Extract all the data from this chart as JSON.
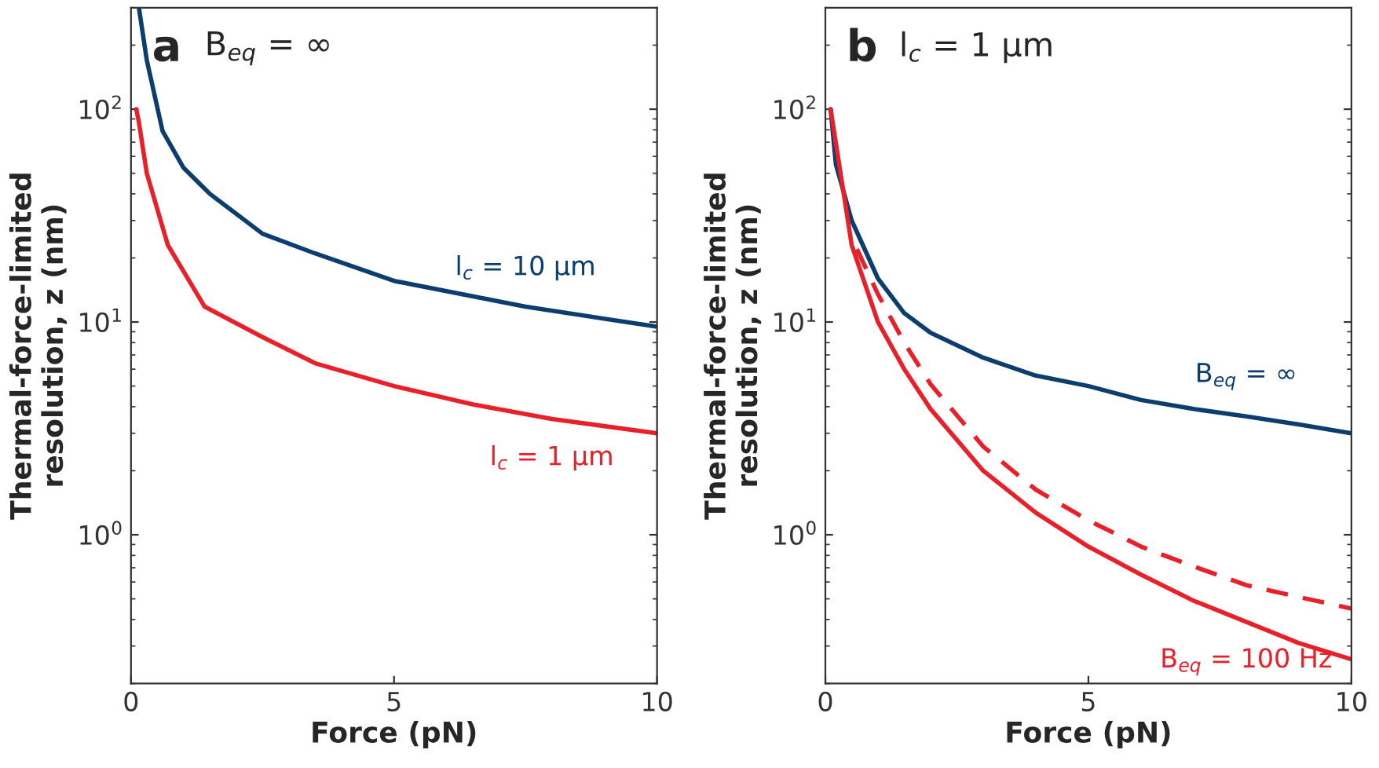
{
  "chart_data": [
    {
      "type": "line",
      "title": "a",
      "subtitle": "B$_{eq}$ = ∞",
      "xlabel": "Force (pN)",
      "ylabel": "Thermal-force-limited\nresolution, z (nm)",
      "log": "y",
      "xlim": [
        0,
        10
      ],
      "ylim": [
        0.2,
        300
      ],
      "xticks": [
        0,
        5,
        10
      ],
      "yticks": [
        {
          "value": 1,
          "label": "10$^{0}$"
        },
        {
          "value": 10,
          "label": "10$^{1}$"
        },
        {
          "value": 100,
          "label": "10$^{2}$"
        }
      ],
      "grid": false,
      "legend": false,
      "series": [
        {
          "name": "l$_{c}$ = 10 μm",
          "color": "#0b3d6e",
          "x": [
            0.15,
            0.3,
            0.6,
            1,
            1.5,
            2.5,
            3.5,
            5,
            7.5,
            10
          ],
          "values": [
            300,
            170,
            79,
            53,
            40,
            26,
            21,
            15.6,
            11.8,
            9.5
          ]
        },
        {
          "name": "l$_{c}$ = 1 μm",
          "color": "#e8202a",
          "x": [
            0.1,
            0.15,
            0.3,
            0.7,
            1.4,
            2.5,
            3.5,
            5,
            6.5,
            8,
            10
          ],
          "values": [
            100,
            87,
            50,
            23,
            11.8,
            8.5,
            6.4,
            5.0,
            4.1,
            3.5,
            3.0
          ]
        }
      ]
    },
    {
      "type": "line",
      "title": "b",
      "subtitle": "l$_{c}$ = 1 μm",
      "xlabel": "Force (pN)",
      "ylabel": "Thermal-force-limited\nresolution, z (nm)",
      "log": "y",
      "xlim": [
        0,
        10
      ],
      "ylim": [
        0.2,
        300
      ],
      "xticks": [
        0,
        5,
        10
      ],
      "yticks": [
        {
          "value": 1,
          "label": "10$^{0}$"
        },
        {
          "value": 10,
          "label": "10$^{1}$"
        },
        {
          "value": 100,
          "label": "10$^{2}$"
        }
      ],
      "grid": false,
      "legend": false,
      "series": [
        {
          "name": "B$_{eq}$ = ∞",
          "color": "#0b3d6e",
          "line_style": "solid",
          "x": [
            0.1,
            0.2,
            0.5,
            1,
            1.5,
            2,
            3,
            4,
            5,
            6,
            7,
            8,
            9,
            10
          ],
          "values": [
            100,
            55,
            30,
            16,
            11,
            8.9,
            6.8,
            5.6,
            5.0,
            4.3,
            3.9,
            3.6,
            3.3,
            3.0
          ]
        },
        {
          "color": "#e8202a",
          "line_style": "dashed",
          "x": [
            0.6,
            1,
            1.5,
            2,
            3,
            4,
            5,
            6,
            7,
            8,
            9,
            10
          ],
          "values": [
            22,
            13.5,
            8.0,
            5.1,
            2.6,
            1.63,
            1.17,
            0.88,
            0.71,
            0.58,
            0.51,
            0.45
          ]
        },
        {
          "name": "B$_{eq}$ = 100 Hz",
          "color": "#e8202a",
          "line_style": "solid",
          "x": [
            0.1,
            0.5,
            1,
            1.5,
            2,
            3,
            4,
            5,
            6,
            7,
            8,
            9,
            10
          ],
          "values": [
            100,
            23,
            10,
            6.0,
            3.9,
            2.0,
            1.27,
            0.88,
            0.65,
            0.49,
            0.39,
            0.31,
            0.26
          ]
        }
      ]
    }
  ]
}
